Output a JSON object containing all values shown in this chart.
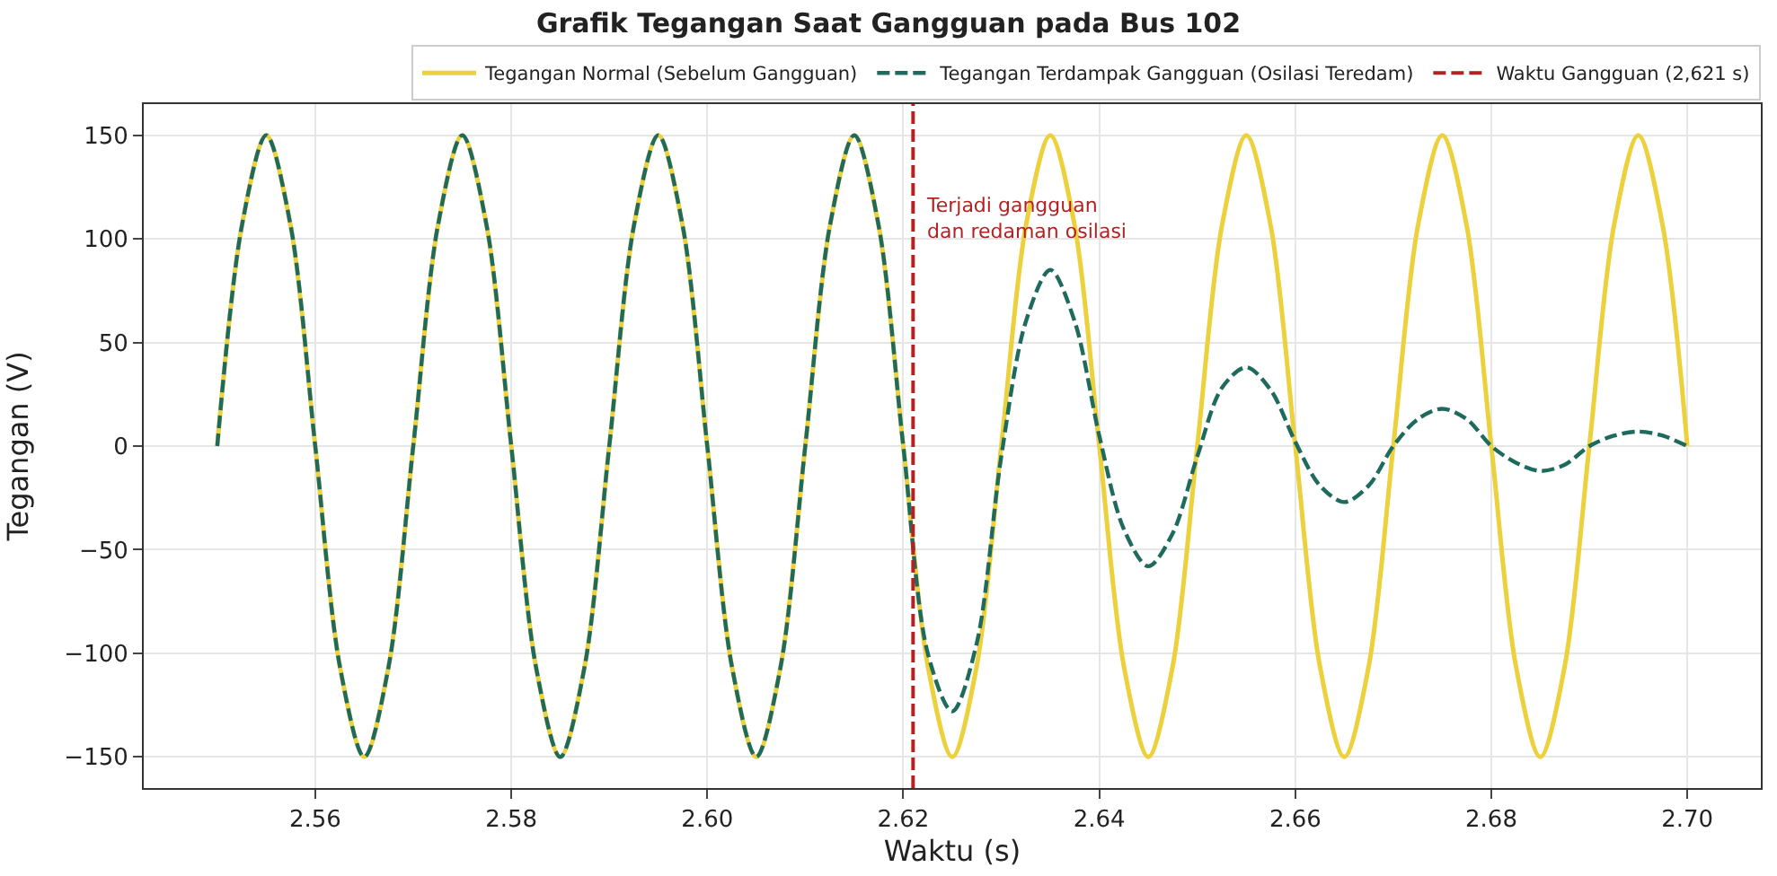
{
  "chart_data": {
    "type": "line",
    "title": "Grafik Tegangan Saat Gangguan pada Bus 102",
    "xlabel": "Waktu (s)",
    "ylabel": "Tegangan (V)",
    "x": [
      2.55,
      2.5525,
      2.555,
      2.5575,
      2.56,
      2.5625,
      2.565,
      2.5675,
      2.57,
      2.5725,
      2.575,
      2.5775,
      2.58,
      2.5825,
      2.585,
      2.5875,
      2.59,
      2.5925,
      2.595,
      2.5975,
      2.6,
      2.6025,
      2.605,
      2.6075,
      2.61,
      2.6125,
      2.615,
      2.6175,
      2.62,
      2.6225,
      2.625,
      2.6275,
      2.63,
      2.6325,
      2.635,
      2.6375,
      2.64,
      2.6425,
      2.645,
      2.6475,
      2.65,
      2.6525,
      2.655,
      2.6575,
      2.66,
      2.6625,
      2.665,
      2.6675,
      2.67,
      2.6725,
      2.675,
      2.6775,
      2.68,
      2.6825,
      2.685,
      2.6875,
      2.69,
      2.6925,
      2.695,
      2.6975,
      2.7
    ],
    "series": [
      {
        "name": "Tegangan Normal (Sebelum Gangguan)",
        "color": "#ecd03c",
        "line_style": "solid",
        "values": [
          0,
          106,
          150,
          106,
          0,
          -106,
          -150,
          -106,
          0,
          106,
          150,
          106,
          0,
          -106,
          -150,
          -106,
          0,
          106,
          150,
          106,
          0,
          -106,
          -150,
          -106,
          0,
          106,
          150,
          106,
          0,
          -106,
          -150,
          -106,
          0,
          106,
          150,
          106,
          0,
          -106,
          -150,
          -106,
          0,
          106,
          150,
          106,
          0,
          -106,
          -150,
          -106,
          0,
          106,
          150,
          106,
          0,
          -106,
          -150,
          -106,
          0,
          106,
          150,
          106,
          0
        ]
      },
      {
        "name": "Tegangan Terdampak Gangguan (Osilasi Teredam)",
        "color": "#1e6b5e",
        "line_style": "dashed",
        "values": [
          0,
          106,
          150,
          106,
          0,
          -106,
          -150,
          -106,
          0,
          106,
          150,
          106,
          0,
          -106,
          -150,
          -106,
          0,
          106,
          150,
          106,
          0,
          -106,
          -150,
          -106,
          0,
          106,
          150,
          106,
          0,
          -100,
          -128,
          -95,
          -5,
          60,
          85,
          60,
          5,
          -40,
          -58,
          -42,
          -5,
          28,
          38,
          27,
          2,
          -19,
          -27,
          -19,
          0,
          13,
          18,
          13,
          0,
          -8,
          -12,
          -9,
          0,
          5,
          7,
          5,
          0
        ]
      }
    ],
    "ref_lines": [
      {
        "axis": "x",
        "value": 2.621,
        "label": "Waktu Gangguan (2,621 s)",
        "color": "#b22222",
        "line_style": "dashed"
      }
    ],
    "annotations": [
      {
        "text": "Terjadi gangguan\ndan redaman osilasi",
        "x": 2.621,
        "y": 110
      }
    ],
    "xlim": [
      2.5425,
      2.7075
    ],
    "xticks": [
      2.56,
      2.58,
      {
        "value": 2.6,
        "label": "2.60"
      },
      2.62,
      2.64,
      2.66,
      2.68,
      {
        "value": 2.7,
        "label": "2.70"
      }
    ],
    "ylim": [
      -165,
      165
    ],
    "yticks": [
      {
        "value": -150,
        "label": "−150"
      },
      {
        "value": -100,
        "label": "−100"
      },
      {
        "value": -50,
        "label": "−50"
      },
      0,
      50,
      100,
      150
    ],
    "grid": true,
    "legend": "top"
  }
}
